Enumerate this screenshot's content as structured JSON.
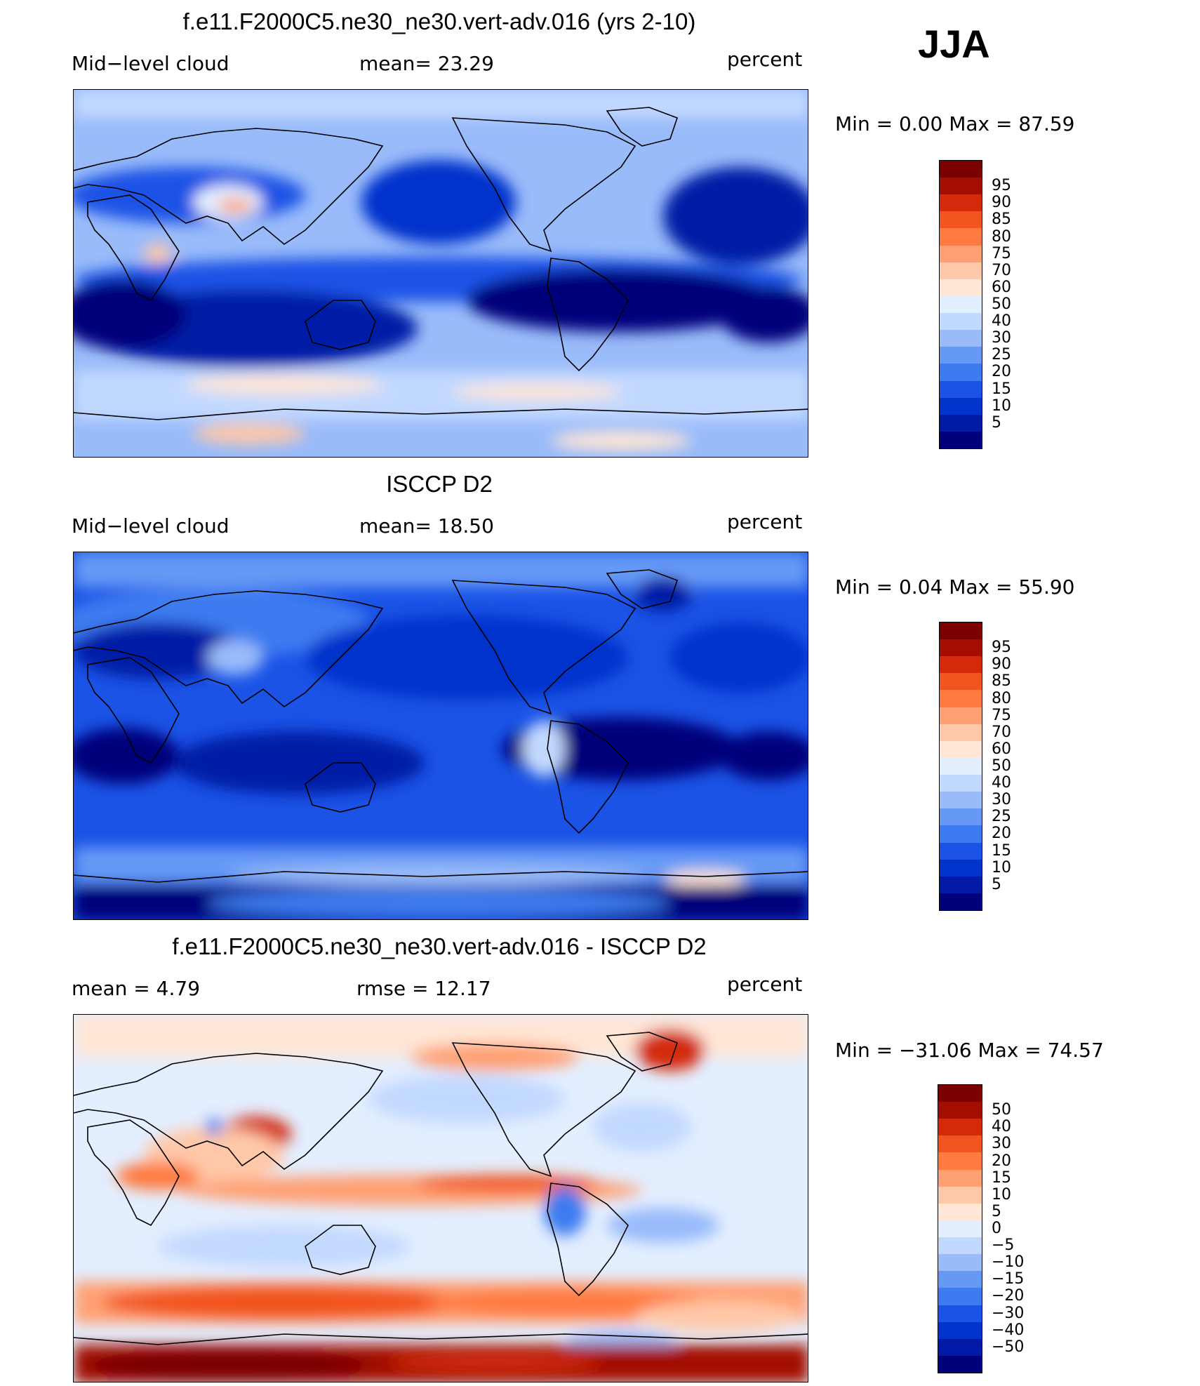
{
  "season": "JJA",
  "palette_seq": [
    "#00007a",
    "#001aa6",
    "#0033cc",
    "#1a53e6",
    "#3d7cf0",
    "#6699f5",
    "#99bbfa",
    "#c2d9ff",
    "#e3eeff",
    "#ffe6d5",
    "#ffc8a8",
    "#ffa073",
    "#ff7a40",
    "#f2541f",
    "#d42a0a",
    "#a30e00",
    "#7a0000"
  ],
  "panels": [
    {
      "id": "model",
      "title": "f.e11.F2000C5.ne30_ne30.vert-adv.016 (yrs 2-10)",
      "left_label": "Mid−level cloud",
      "center_label": "mean=   23.29",
      "units": "percent",
      "minmax": "Min  =     0.00  Max  =    87.59",
      "colorbar_labels": [
        "95",
        "90",
        "85",
        "80",
        "75",
        "70",
        "60",
        "50",
        "40",
        "30",
        "25",
        "20",
        "15",
        "10",
        "5"
      ]
    },
    {
      "id": "obs",
      "title": "ISCCP D2",
      "left_label": "Mid−level cloud",
      "center_label": "mean=   18.50",
      "units": "percent",
      "minmax": "Min  =     0.04  Max  =    55.90",
      "colorbar_labels": [
        "95",
        "90",
        "85",
        "80",
        "75",
        "70",
        "60",
        "50",
        "40",
        "30",
        "25",
        "20",
        "15",
        "10",
        "5"
      ]
    },
    {
      "id": "diff",
      "title": "f.e11.F2000C5.ne30_ne30.vert-adv.016 - ISCCP D2",
      "left_label": "mean  =     4.79",
      "center_label": "rmse  =    12.17",
      "units": "percent",
      "minmax": "Min  =  −31.06  Max  =    74.57",
      "colorbar_labels": [
        "50",
        "40",
        "30",
        "20",
        "15",
        "10",
        "5",
        "0",
        "−5",
        "−10",
        "−15",
        "−20",
        "−30",
        "−40",
        "−50"
      ]
    }
  ]
}
